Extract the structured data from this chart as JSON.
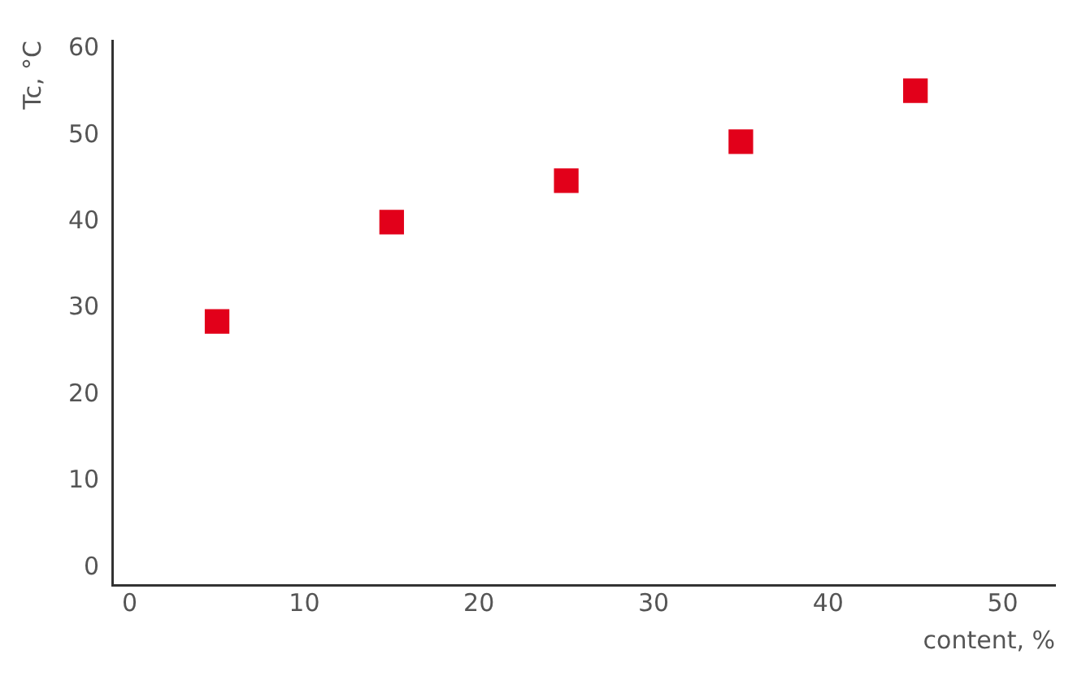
{
  "chart_data": {
    "type": "scatter",
    "xlabel": "content, %",
    "ylabel": "Tc, °C",
    "x": [
      5,
      15,
      25,
      35,
      45
    ],
    "series": [
      {
        "color": "#e2001a",
        "values": [
          28.5,
          40,
          44.8,
          49.3,
          55.2
        ]
      }
    ],
    "xlim": [
      -1,
      53
    ],
    "ylim": [
      -2,
      61
    ],
    "xticks": [
      0,
      10,
      20,
      30,
      40,
      50
    ],
    "yticks": [
      0,
      10,
      20,
      30,
      40,
      50,
      60
    ],
    "grid": false,
    "legend": false,
    "marker": "square"
  }
}
